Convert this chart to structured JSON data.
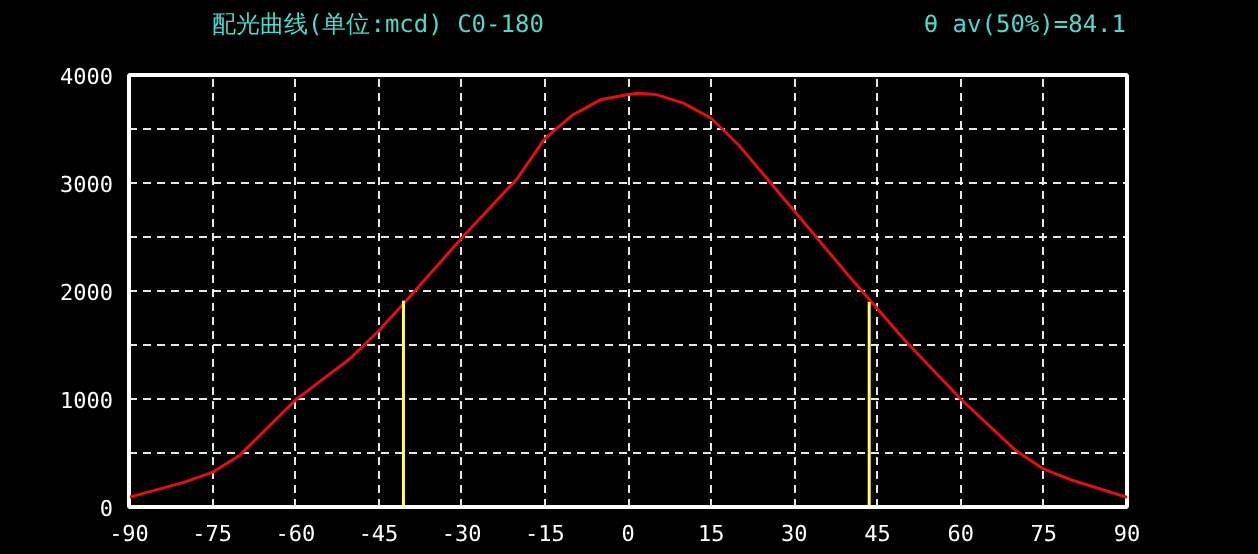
{
  "chart_data": {
    "type": "line",
    "title": "配光曲线(单位:mcd)  C0-180",
    "annotations": [
      "θ av(50%)=84.1"
    ],
    "xlim": [
      -90,
      90
    ],
    "xticks": [
      -90,
      -75,
      -60,
      -45,
      -30,
      -15,
      0,
      15,
      30,
      45,
      60,
      75,
      90
    ],
    "ylim": [
      0,
      4000
    ],
    "yticks": [
      0,
      {
        "value": 500,
        "label": null
      },
      1000,
      {
        "value": 1500,
        "label": null
      },
      2000,
      {
        "value": 2500,
        "label": null
      },
      3000,
      {
        "value": 3500,
        "label": null
      },
      4000
    ],
    "grid": true,
    "line_style": "solid",
    "marker": "none",
    "series": [
      {
        "color": "#e01010",
        "x": [
          -90,
          -80,
          -75,
          -70,
          -60,
          -50,
          -45,
          -40,
          -30,
          -20,
          -15,
          -10,
          -5,
          0,
          2,
          5,
          10,
          15,
          20,
          30,
          40,
          50,
          60,
          70,
          75,
          80,
          90
        ],
        "values": [
          90,
          230,
          320,
          480,
          990,
          1380,
          1630,
          1910,
          2490,
          3040,
          3410,
          3630,
          3770,
          3820,
          3830,
          3820,
          3740,
          3600,
          3350,
          2740,
          2130,
          1540,
          1000,
          520,
          350,
          250,
          90
        ]
      },
      {
        "color": "#ffff66",
        "x": [
          -40.5,
          -40.5
        ],
        "values": [
          0,
          1910
        ]
      },
      {
        "color": "#ffff66",
        "x": [
          43.5,
          43.5
        ],
        "values": [
          0,
          1900
        ]
      }
    ]
  }
}
